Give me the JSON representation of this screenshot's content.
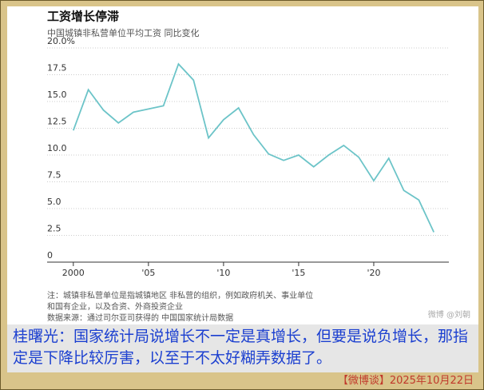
{
  "chart_data": {
    "type": "line",
    "title": "工资增长停滞",
    "subtitle": "中国城镇非私营单位平均工资 同比变化",
    "x": [
      2000,
      2001,
      2002,
      2003,
      2004,
      2005,
      2006,
      2007,
      2008,
      2009,
      2010,
      2011,
      2012,
      2013,
      2014,
      2015,
      2016,
      2017,
      2018,
      2019,
      2020,
      2021,
      2022,
      2023,
      2024
    ],
    "series": [
      {
        "color": "#6cc4c8",
        "values": [
          12.3,
          16.1,
          14.2,
          13.0,
          14.0,
          14.3,
          14.6,
          18.5,
          17.0,
          11.6,
          13.3,
          14.4,
          11.9,
          10.1,
          9.5,
          10.0,
          8.9,
          10.0,
          10.9,
          9.8,
          7.6,
          9.7,
          6.7,
          5.8,
          2.8
        ]
      }
    ],
    "xlim": [
      1999,
      2025
    ],
    "xticks": [
      2000,
      {
        "value": 2005,
        "label": "'05"
      },
      {
        "value": 2010,
        "label": "'10"
      },
      {
        "value": 2015,
        "label": "'15"
      },
      {
        "value": 2020,
        "label": "'20"
      }
    ],
    "ylim": [
      0,
      20
    ],
    "yticks": [
      0,
      2.5,
      {
        "value": 5,
        "label": "5.0"
      },
      7.5,
      {
        "value": 10,
        "label": "10.0"
      },
      12.5,
      {
        "value": 15,
        "label": "15.0"
      },
      17.5,
      {
        "value": 20,
        "label": "20.0%"
      }
    ],
    "grid": true,
    "notes": [
      "注：城镇非私营单位是指城镇地区 非私营的组织，例如政府机关、事业单位",
      "和国有企业，以及合资、外商投资企业",
      "数据来源：通过司尔亚司获得的 中国国家统计局数据"
    ]
  },
  "watermark": "微博 @刘朝",
  "caption": "桂曙光：国家统计局说增长不一定是真增长，但要是说负增长，那指定是下降比较厉害，以至于不太好糊弄数据了。",
  "footer": "【微博谈】2025年10月22日"
}
